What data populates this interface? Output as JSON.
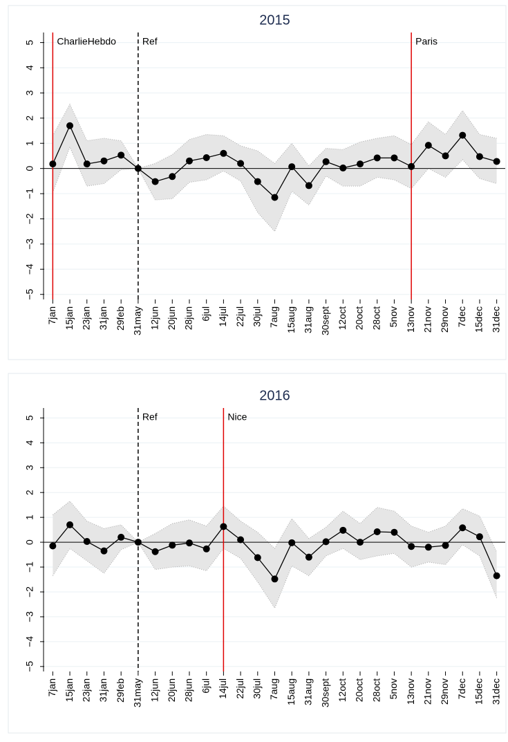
{
  "chart_data": [
    {
      "type": "line",
      "title": "2015",
      "categories": [
        "7jan",
        "15jan",
        "23jan",
        "31jan",
        "29feb",
        "31may",
        "12jun",
        "20jun",
        "28jun",
        "6jul",
        "14jul",
        "22jul",
        "30jul",
        "7aug",
        "15aug",
        "31aug",
        "30sept",
        "12oct",
        "20oct",
        "28oct",
        "5nov",
        "13nov",
        "21nov",
        "29nov",
        "7dec",
        "15dec",
        "31dec"
      ],
      "values": [
        0.18,
        1.7,
        0.18,
        0.3,
        0.53,
        0,
        -0.52,
        -0.32,
        0.3,
        0.43,
        0.6,
        0.2,
        -0.52,
        -1.15,
        0.07,
        -0.68,
        0.27,
        0.02,
        0.18,
        0.42,
        0.42,
        0.08,
        0.92,
        0.5,
        1.32,
        0.47,
        0.28
      ],
      "ci_upper": [
        1.3,
        2.55,
        1.1,
        1.2,
        1.1,
        0,
        0.2,
        0.55,
        1.15,
        1.35,
        1.3,
        0.9,
        0.7,
        0.2,
        1.0,
        0.1,
        0.8,
        0.75,
        1.05,
        1.2,
        1.3,
        0.95,
        1.85,
        1.35,
        2.3,
        1.35,
        1.2
      ],
      "ci_lower": [
        -0.95,
        0.85,
        -0.7,
        -0.6,
        -0.05,
        0,
        -1.25,
        -1.2,
        -0.55,
        -0.45,
        -0.1,
        -0.5,
        -1.75,
        -2.5,
        -0.9,
        -1.45,
        -0.3,
        -0.7,
        -0.7,
        -0.35,
        -0.45,
        -0.8,
        0.0,
        -0.35,
        0.35,
        -0.4,
        -0.6
      ],
      "color": "#000000",
      "ci_color": "#e6e6e6",
      "ylim": [
        -5.2,
        5.4
      ],
      "yticks": [
        {
          "value": -5,
          "label": "−5"
        },
        {
          "value": -4,
          "label": "−4"
        },
        {
          "value": -3,
          "label": "−3"
        },
        {
          "value": -2,
          "label": "−2"
        },
        {
          "value": -1,
          "label": "−1"
        },
        0,
        1,
        2,
        3,
        4,
        5
      ],
      "grid": true,
      "zero_line": true,
      "annotations": [
        {
          "at": "7jan",
          "label": "CharlieHebdo",
          "color": "#e00000",
          "style": "solid"
        },
        {
          "at": "31may",
          "label": "Ref",
          "color": "#000000",
          "style": "dashed"
        },
        {
          "at": "13nov",
          "label": "Paris",
          "color": "#e00000",
          "style": "solid"
        }
      ]
    },
    {
      "type": "line",
      "title": "2016",
      "categories": [
        "7jan",
        "15jan",
        "23jan",
        "31jan",
        "29feb",
        "31may",
        "12jun",
        "20jun",
        "28jun",
        "6jul",
        "14jul",
        "22jul",
        "30jul",
        "7aug",
        "15aug",
        "31aug",
        "30sept",
        "12oct",
        "20oct",
        "28oct",
        "5nov",
        "13nov",
        "21nov",
        "29nov",
        "7dec",
        "15dec",
        "31dec"
      ],
      "values": [
        -0.15,
        0.7,
        0.03,
        -0.35,
        0.2,
        0,
        -0.38,
        -0.12,
        -0.03,
        -0.27,
        0.63,
        0.1,
        -0.62,
        -1.48,
        -0.02,
        -0.6,
        0.02,
        0.48,
        0.0,
        0.42,
        0.4,
        -0.17,
        -0.2,
        -0.13,
        0.58,
        0.22,
        -1.35
      ],
      "ci_upper": [
        1.1,
        1.65,
        0.85,
        0.55,
        0.7,
        0,
        0.35,
        0.75,
        0.9,
        0.65,
        1.45,
        0.85,
        0.4,
        -0.25,
        0.95,
        0.15,
        0.6,
        1.25,
        0.75,
        1.4,
        1.25,
        0.65,
        0.4,
        0.65,
        1.35,
        1.05,
        -0.4
      ],
      "ci_lower": [
        -1.35,
        -0.25,
        -0.75,
        -1.25,
        -0.3,
        0,
        -1.1,
        -1.0,
        -0.95,
        -1.15,
        -0.25,
        -0.65,
        -1.6,
        -2.65,
        -0.95,
        -1.35,
        -0.55,
        -0.25,
        -0.7,
        -0.55,
        -0.45,
        -1.0,
        -0.8,
        -0.9,
        -0.1,
        -0.55,
        -2.25
      ],
      "color": "#000000",
      "ci_color": "#e6e6e6",
      "ylim": [
        -5.2,
        5.4
      ],
      "yticks": [
        {
          "value": -5,
          "label": "−5"
        },
        {
          "value": -4,
          "label": "−4"
        },
        {
          "value": -3,
          "label": "−3"
        },
        {
          "value": -2,
          "label": "−2"
        },
        {
          "value": -1,
          "label": "−1"
        },
        0,
        1,
        2,
        3,
        4,
        5
      ],
      "grid": true,
      "zero_line": true,
      "annotations": [
        {
          "at": "31may",
          "label": "Ref",
          "color": "#000000",
          "style": "dashed"
        },
        {
          "at": "14jul",
          "label": "Nice",
          "color": "#e00000",
          "style": "solid"
        }
      ]
    }
  ]
}
